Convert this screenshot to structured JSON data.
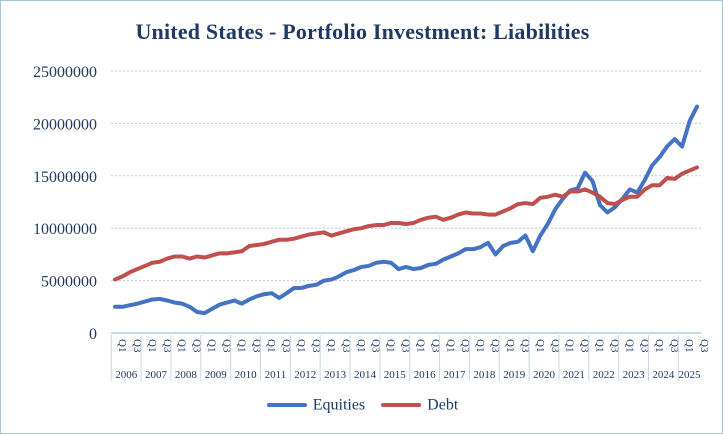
{
  "chart_data": {
    "type": "line",
    "title": "United States - Portfolio Investment: Liabilities",
    "xlabel": "",
    "ylabel": "",
    "ylim": [
      0,
      25000000
    ],
    "yticks": [
      "0",
      "5000000",
      "10000000",
      "15000000",
      "20000000",
      "25000000"
    ],
    "grid": true,
    "legend_position": "bottom",
    "quarter_labels": [
      "Q1",
      "Q3"
    ],
    "years": [
      "2006",
      "2007",
      "2008",
      "2009",
      "2010",
      "2011",
      "2012",
      "2013",
      "2014",
      "2015",
      "2016",
      "2017",
      "2018",
      "2019",
      "2020",
      "2021",
      "2022",
      "2023",
      "2024",
      "2025"
    ],
    "x": [
      "2006Q1",
      "2006Q2",
      "2006Q3",
      "2006Q4",
      "2007Q1",
      "2007Q2",
      "2007Q3",
      "2007Q4",
      "2008Q1",
      "2008Q2",
      "2008Q3",
      "2008Q4",
      "2009Q1",
      "2009Q2",
      "2009Q3",
      "2009Q4",
      "2010Q1",
      "2010Q2",
      "2010Q3",
      "2010Q4",
      "2011Q1",
      "2011Q2",
      "2011Q3",
      "2011Q4",
      "2012Q1",
      "2012Q2",
      "2012Q3",
      "2012Q4",
      "2013Q1",
      "2013Q2",
      "2013Q3",
      "2013Q4",
      "2014Q1",
      "2014Q2",
      "2014Q3",
      "2014Q4",
      "2015Q1",
      "2015Q2",
      "2015Q3",
      "2015Q4",
      "2016Q1",
      "2016Q2",
      "2016Q3",
      "2016Q4",
      "2017Q1",
      "2017Q2",
      "2017Q3",
      "2017Q4",
      "2018Q1",
      "2018Q2",
      "2018Q3",
      "2018Q4",
      "2019Q1",
      "2019Q2",
      "2019Q3",
      "2019Q4",
      "2020Q1",
      "2020Q2",
      "2020Q3",
      "2020Q4",
      "2021Q1",
      "2021Q2",
      "2021Q3",
      "2021Q4",
      "2022Q1",
      "2022Q2",
      "2022Q3",
      "2022Q4",
      "2023Q1",
      "2023Q2",
      "2023Q3",
      "2023Q4",
      "2024Q1",
      "2024Q2",
      "2024Q3",
      "2024Q4",
      "2025Q1",
      "2025Q2",
      "2025Q3"
    ],
    "series": [
      {
        "name": "Equities",
        "color": "#4472c4",
        "values": [
          2500000,
          2500000,
          2650000,
          2800000,
          3000000,
          3200000,
          3250000,
          3100000,
          2900000,
          2800000,
          2500000,
          2000000,
          1900000,
          2300000,
          2700000,
          2900000,
          3100000,
          2800000,
          3200000,
          3500000,
          3700000,
          3800000,
          3350000,
          3800000,
          4300000,
          4300000,
          4500000,
          4600000,
          5000000,
          5100000,
          5400000,
          5800000,
          6000000,
          6300000,
          6400000,
          6700000,
          6800000,
          6700000,
          6100000,
          6300000,
          6100000,
          6200000,
          6500000,
          6600000,
          7000000,
          7300000,
          7600000,
          8000000,
          8000000,
          8200000,
          8600000,
          7500000,
          8300000,
          8600000,
          8700000,
          9300000,
          7800000,
          9300000,
          10400000,
          11800000,
          12800000,
          13600000,
          13800000,
          15300000,
          14500000,
          12200000,
          11500000,
          12000000,
          12800000,
          13700000,
          13400000,
          14600000,
          16000000,
          16800000,
          17800000,
          18500000,
          17800000,
          20200000,
          21600000
        ]
      },
      {
        "name": "Debt",
        "color": "#c0504d",
        "values": [
          5100000,
          5400000,
          5800000,
          6100000,
          6400000,
          6700000,
          6800000,
          7100000,
          7300000,
          7300000,
          7100000,
          7300000,
          7200000,
          7400000,
          7600000,
          7600000,
          7700000,
          7800000,
          8300000,
          8400000,
          8500000,
          8700000,
          8900000,
          8900000,
          9000000,
          9200000,
          9400000,
          9500000,
          9600000,
          9300000,
          9500000,
          9700000,
          9900000,
          10000000,
          10200000,
          10300000,
          10300000,
          10500000,
          10500000,
          10400000,
          10500000,
          10800000,
          11000000,
          11100000,
          10800000,
          11000000,
          11300000,
          11500000,
          11400000,
          11400000,
          11300000,
          11300000,
          11600000,
          11900000,
          12300000,
          12400000,
          12300000,
          12900000,
          13000000,
          13200000,
          13000000,
          13500000,
          13500000,
          13700000,
          13400000,
          13000000,
          12400000,
          12300000,
          12700000,
          13000000,
          13000000,
          13700000,
          14100000,
          14100000,
          14800000,
          14700000,
          15200000,
          15500000,
          15800000
        ]
      }
    ]
  }
}
